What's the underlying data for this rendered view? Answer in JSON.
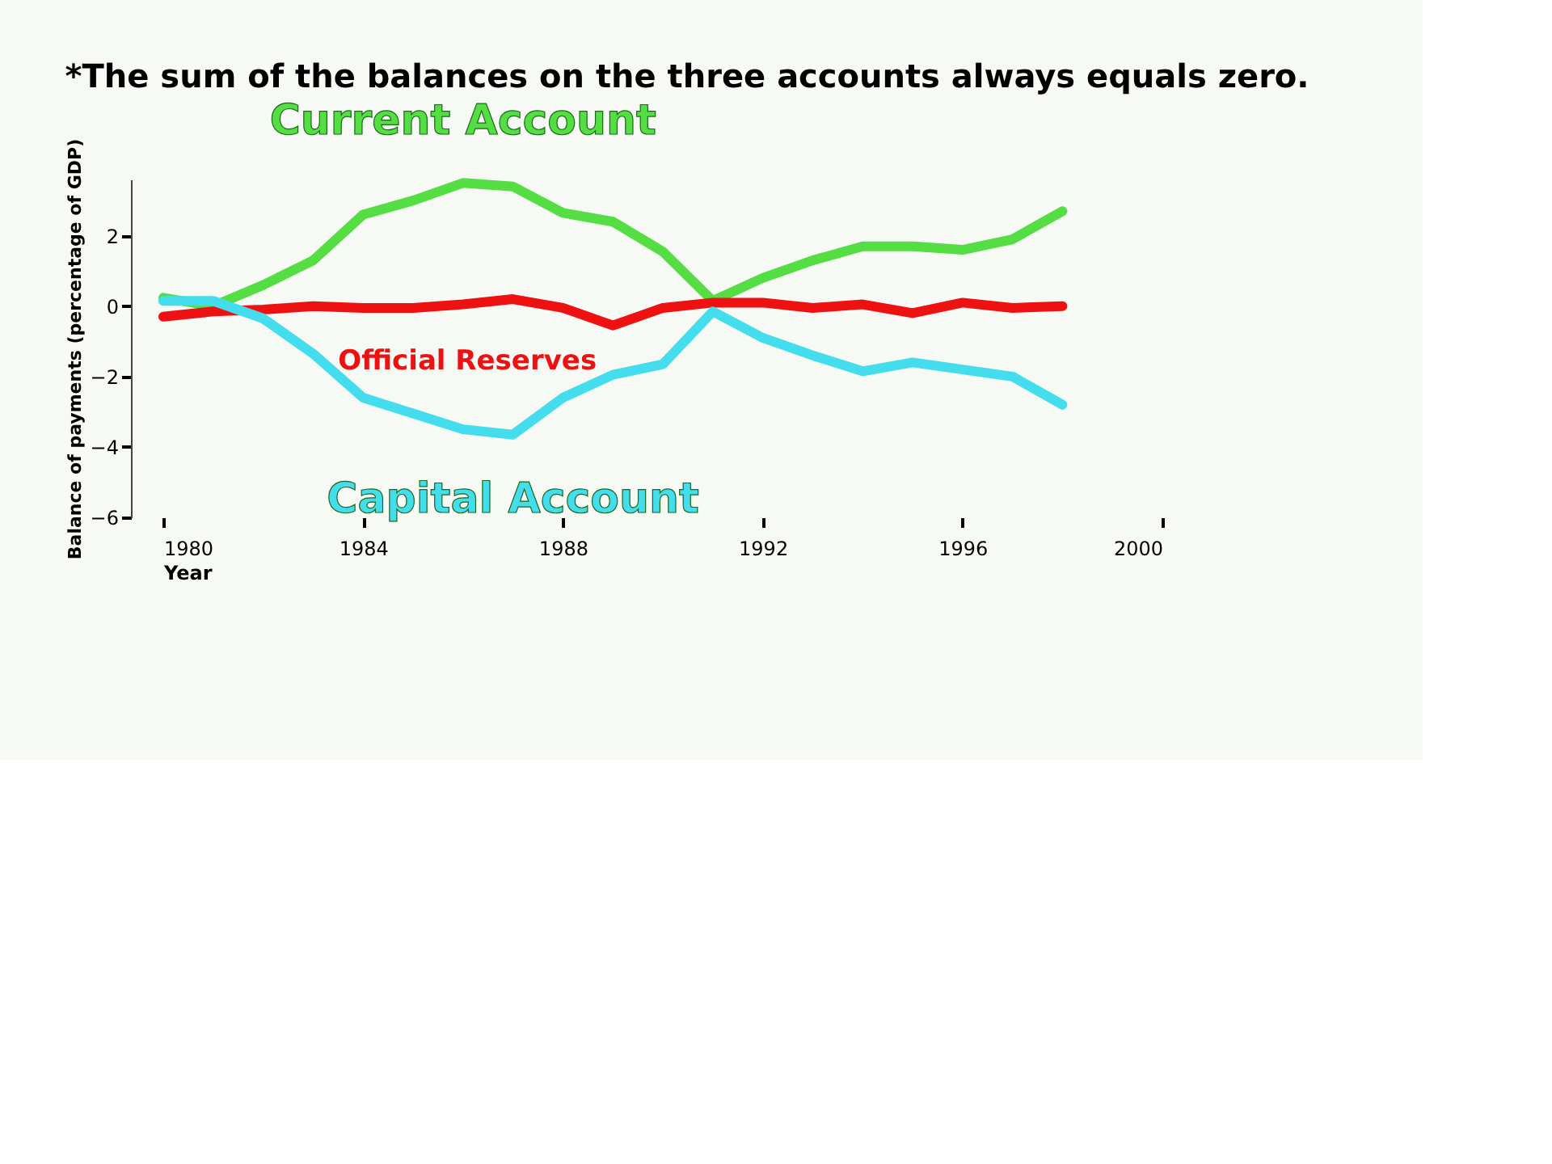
{
  "chart_data": {
    "type": "line",
    "title": "*The sum of the balances on the three accounts always equals zero.",
    "xlabel": "Year",
    "ylabel": "Balance of payments (percentage of GDP)",
    "x": [
      1980,
      1981,
      1982,
      1983,
      1984,
      1985,
      1986,
      1987,
      1988,
      1989,
      1990,
      1991,
      1992,
      1993,
      1994,
      1995,
      1996,
      1997,
      1998
    ],
    "series": [
      {
        "name": "Current Account",
        "color": "#55dd44",
        "values": [
          0.24,
          0.0,
          0.6,
          1.3,
          2.6,
          3.0,
          3.5,
          3.4,
          2.65,
          2.4,
          1.55,
          0.15,
          0.8,
          1.3,
          1.7,
          1.7,
          1.6,
          1.9,
          2.7
        ]
      },
      {
        "name": "Official Reserves",
        "color": "#ee1111",
        "values": [
          -0.3,
          -0.15,
          -0.1,
          0.0,
          -0.05,
          -0.05,
          0.05,
          0.2,
          -0.05,
          -0.55,
          -0.05,
          0.1,
          0.1,
          -0.05,
          0.05,
          -0.2,
          0.1,
          -0.05,
          0.0
        ]
      },
      {
        "name": "Capital Account",
        "color": "#44ddee",
        "values": [
          0.15,
          0.15,
          -0.35,
          -1.35,
          -2.6,
          -3.05,
          -3.5,
          -3.65,
          -2.6,
          -1.95,
          -1.65,
          -0.15,
          -0.9,
          -1.4,
          -1.85,
          -1.6,
          -1.8,
          -2.0,
          -2.8
        ]
      }
    ],
    "xlim": [
      1980,
      2000
    ],
    "xticks": [
      1980,
      1984,
      1988,
      1992,
      1996,
      2000
    ],
    "ylim": [
      -6,
      3.6
    ],
    "yticks": [
      -6,
      -4,
      -2,
      0,
      2
    ],
    "grid": false,
    "marker": "none",
    "line_style": "solid"
  }
}
